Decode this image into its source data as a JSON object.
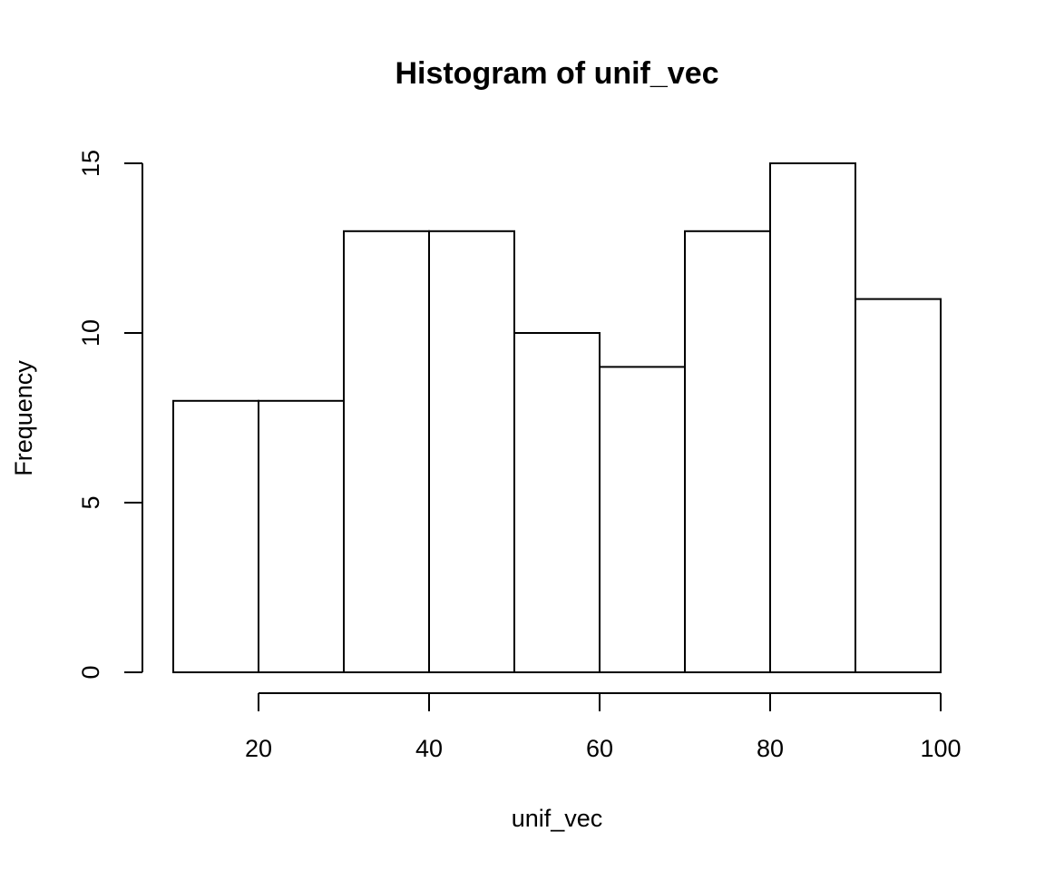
{
  "chart_data": {
    "type": "bar",
    "histogram": true,
    "title": "Histogram of unif_vec",
    "xlabel": "unif_vec",
    "ylabel": "Frequency",
    "bin_edges": [
      10,
      20,
      30,
      40,
      50,
      60,
      70,
      80,
      90,
      100
    ],
    "values": [
      8,
      8,
      13,
      13,
      10,
      9,
      13,
      15,
      11
    ],
    "xlim": [
      10,
      100
    ],
    "ylim": [
      0,
      15
    ],
    "x_ticks": [
      20,
      40,
      60,
      80,
      100
    ],
    "y_ticks": [
      0,
      5,
      10,
      15
    ],
    "grid": false,
    "colors": {
      "bar_fill": "#ffffff",
      "bar_stroke": "#000000"
    }
  }
}
